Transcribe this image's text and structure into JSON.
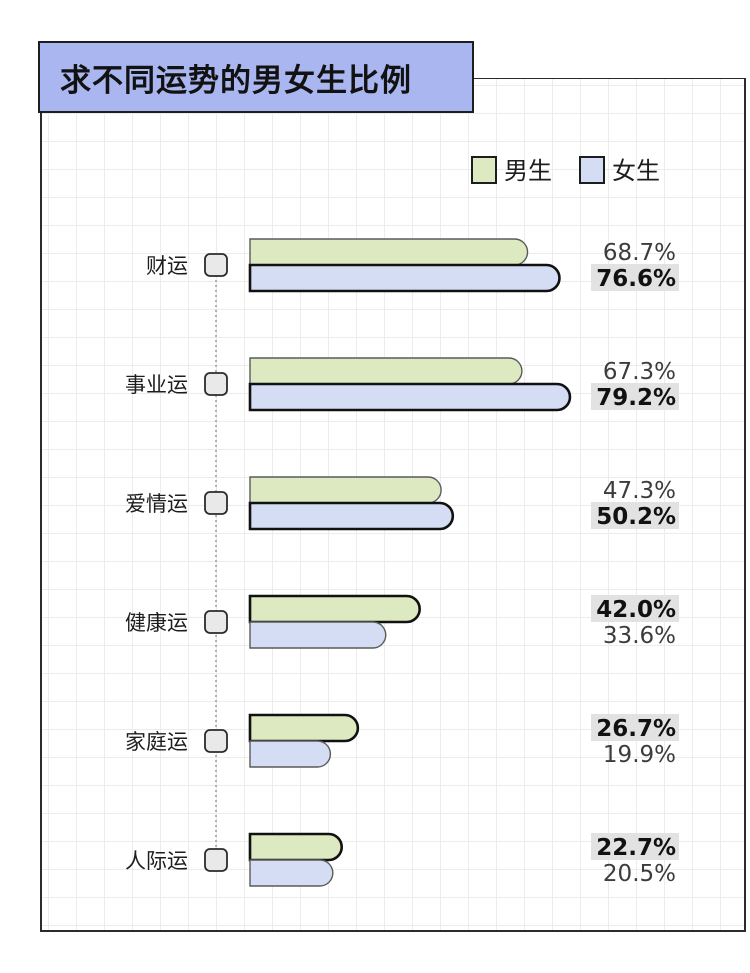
{
  "title": "求不同运势的男女生比例",
  "colors": {
    "male": "#dde9c0",
    "female": "#d4ddf4",
    "title_bg": "#a9b6f0",
    "highlight": "#e2e2e2"
  },
  "chart_data": {
    "type": "bar",
    "orientation": "horizontal",
    "title": "求不同运势的男女生比例",
    "categories": [
      "财运",
      "事业运",
      "爱情运",
      "健康运",
      "家庭运",
      "人际运"
    ],
    "series": [
      {
        "name": "男生",
        "values": [
          68.7,
          67.3,
          47.3,
          42.0,
          26.7,
          22.7
        ]
      },
      {
        "name": "女生",
        "values": [
          76.6,
          79.2,
          50.2,
          33.6,
          19.9,
          20.5
        ]
      }
    ],
    "value_labels": {
      "男生": [
        "68.7%",
        "67.3%",
        "47.3%",
        "42.0%",
        "26.7%",
        "22.7%"
      ],
      "女生": [
        "76.6%",
        "79.2%",
        "50.2%",
        "33.6%",
        "19.9%",
        "20.5%"
      ]
    },
    "unit": "%",
    "legend_position": "top-right",
    "grid": true
  }
}
